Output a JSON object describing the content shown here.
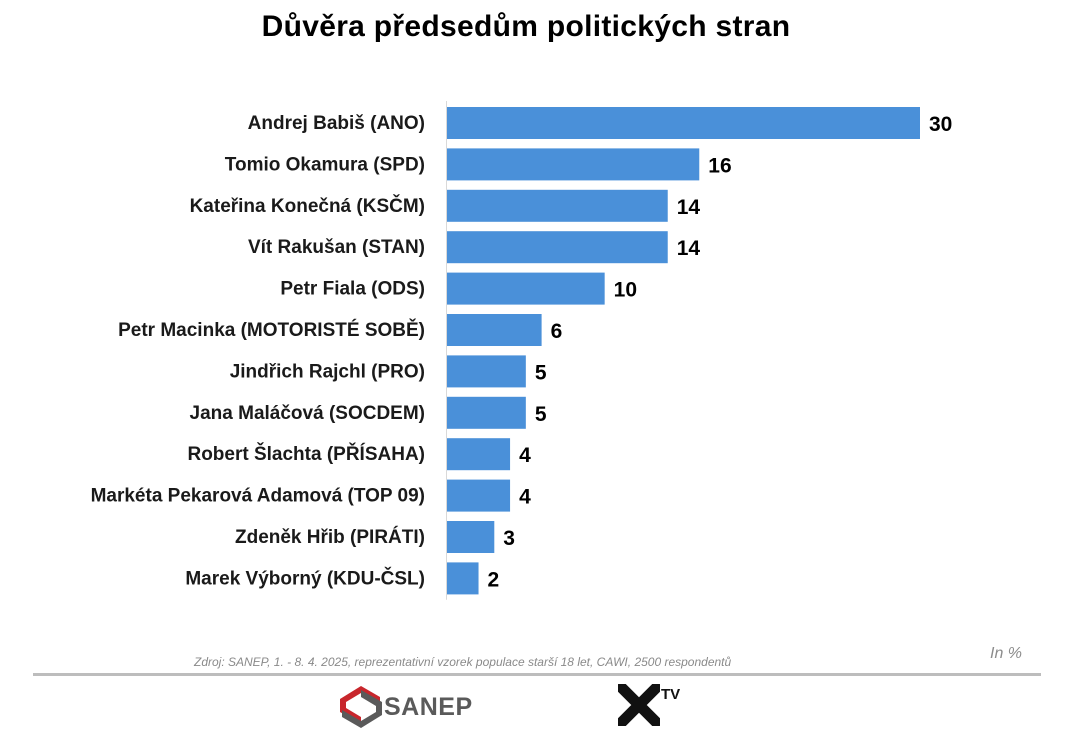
{
  "chart_data": {
    "type": "bar",
    "orientation": "horizontal",
    "title": "Důvěra předsedům politických stran",
    "categories": [
      "Andrej Babiš (ANO)",
      "Tomio Okamura (SPD)",
      "Kateřina Konečná (KSČM)",
      "Vít Rakušan (STAN)",
      "Petr Fiala (ODS)",
      "Petr Macinka (MOTORISTÉ SOBĚ)",
      "Jindřich Rajchl (PRO)",
      "Jana Maláčová (SOCDEM)",
      "Robert Šlachta (PŘÍSAHA)",
      "Markéta Pekarová Adamová (TOP 09)",
      "Zdeněk Hřib (PIRÁTI)",
      "Marek Výborný (KDU-ČSL)"
    ],
    "values": [
      30,
      16,
      14,
      14,
      10,
      6,
      5,
      5,
      4,
      4,
      3,
      2
    ],
    "value_labels": [
      "30",
      "16",
      "14",
      "14",
      "10",
      "6",
      "5",
      "5",
      "4",
      "4",
      "3",
      "2"
    ],
    "xlim": [
      0,
      30
    ],
    "bar_color": "#4a90d9",
    "grid": false,
    "legend": "none"
  },
  "footer": {
    "source": "Zdroj: SANEP, 1. - 8. 4. 2025, reprezentativní vzorek populace starší 18 let, CAWI, 2500 respondentů",
    "unit": "In %",
    "logo_sanep": "SANEP",
    "logo_xtv": "TV"
  }
}
